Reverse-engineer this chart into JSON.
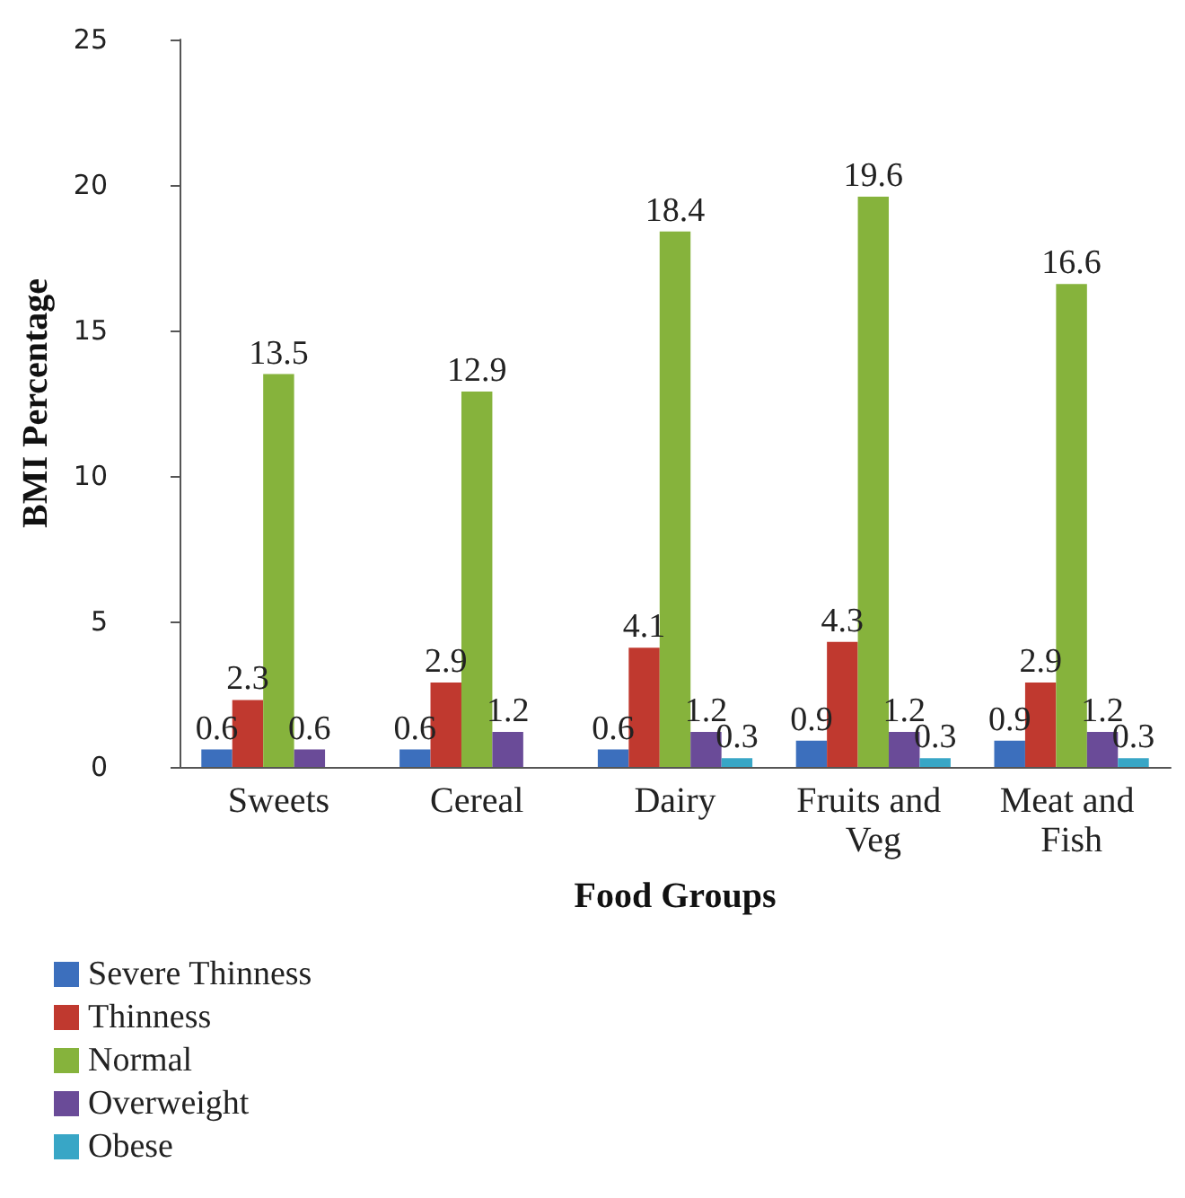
{
  "chart_data": {
    "type": "bar",
    "xlabel": "Food Groups",
    "ylabel": "BMI Percentage",
    "categories": [
      "Sweets",
      "Cereal",
      "Dairy",
      "Fruits and Veg",
      "Meat and Fish"
    ],
    "series": [
      {
        "name": "Severe Thinness",
        "color": "#3c6fbd",
        "values": [
          0.6,
          0.6,
          0.6,
          0.9,
          0.9
        ]
      },
      {
        "name": "Thinness",
        "color": "#c0392f",
        "values": [
          2.3,
          2.9,
          4.1,
          4.3,
          2.9
        ]
      },
      {
        "name": "Normal",
        "color": "#86b33c",
        "values": [
          13.5,
          12.9,
          18.4,
          19.6,
          16.6
        ]
      },
      {
        "name": "Overweight",
        "color": "#6a4b98",
        "values": [
          0.6,
          1.2,
          1.2,
          1.2,
          1.2
        ]
      },
      {
        "name": "Obese",
        "color": "#38a6c6",
        "values": [
          null,
          null,
          0.3,
          0.3,
          0.3
        ]
      }
    ],
    "ylim": [
      0,
      25
    ],
    "yticks": [
      0,
      5,
      10,
      15,
      20,
      25
    ],
    "grid": false,
    "data_labels": true,
    "legend": "bottom"
  }
}
